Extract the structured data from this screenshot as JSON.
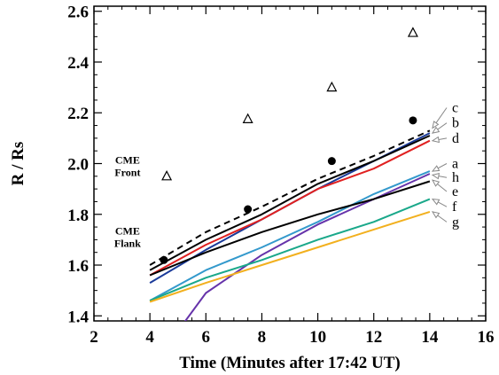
{
  "chart_data": {
    "type": "line",
    "title": "",
    "xlabel": "Time (Minutes after 17:42 UT)",
    "ylabel": "R / Rs",
    "xlim": [
      2,
      16
    ],
    "ylim": [
      1.38,
      2.62
    ],
    "xticks": [
      2,
      4,
      6,
      8,
      10,
      12,
      14,
      16
    ],
    "yticks": [
      1.4,
      1.6,
      1.8,
      2.0,
      2.2,
      2.4,
      2.6
    ],
    "ytick_labels": [
      "1.4",
      "1.6",
      "1.8",
      "2.0",
      "2.2",
      "2.4",
      "2.6"
    ],
    "grid": false,
    "legend": "right-side letters with arrows",
    "annotations": [
      {
        "lines": [
          "CME",
          "Front"
        ],
        "x": 3.2,
        "y": 2.0
      },
      {
        "lines": [
          "CME",
          "Flank"
        ],
        "x": 3.2,
        "y": 1.72
      }
    ],
    "markers": [
      {
        "name": "triangles",
        "shape": "open-triangle",
        "x": [
          4.6,
          7.5,
          10.5,
          13.4
        ],
        "y": [
          1.95,
          2.175,
          2.3,
          2.515
        ]
      },
      {
        "name": "dots",
        "shape": "filled-circle",
        "x": [
          4.5,
          7.5,
          10.5,
          13.4
        ],
        "y": [
          1.62,
          1.82,
          2.01,
          2.17
        ]
      }
    ],
    "series": [
      {
        "name": "c",
        "color": "#000000",
        "dash": "7,5",
        "x": [
          4,
          6,
          8,
          10,
          12,
          14
        ],
        "y": [
          1.6,
          1.73,
          1.83,
          1.94,
          2.03,
          2.13
        ]
      },
      {
        "name": "b",
        "color": "#1a3a99",
        "dash": "",
        "x": [
          4,
          6,
          8,
          10,
          12,
          14
        ],
        "y": [
          1.53,
          1.66,
          1.78,
          1.9,
          2.01,
          2.12
        ]
      },
      {
        "name": "d",
        "color": "#e02020",
        "dash": "",
        "x": [
          4,
          6,
          8,
          10,
          12,
          14
        ],
        "y": [
          1.56,
          1.68,
          1.78,
          1.9,
          1.98,
          2.09
        ]
      },
      {
        "name": "",
        "color": "#000000",
        "dash": "",
        "x": [
          4,
          6,
          8,
          10,
          12,
          14
        ],
        "y": [
          1.58,
          1.7,
          1.8,
          1.92,
          2.01,
          2.11
        ]
      },
      {
        "name": "a",
        "color": "#3399cc",
        "dash": "",
        "x": [
          4,
          6,
          8,
          10,
          12,
          14
        ],
        "y": [
          1.46,
          1.58,
          1.67,
          1.77,
          1.88,
          1.97
        ]
      },
      {
        "name": "h",
        "color": "#6633aa",
        "dash": "",
        "x": [
          5.2,
          6,
          8,
          10,
          12,
          14
        ],
        "y": [
          1.37,
          1.49,
          1.64,
          1.76,
          1.86,
          1.96
        ]
      },
      {
        "name": "e",
        "color": "#000000",
        "dash": "",
        "x": [
          4,
          6,
          8,
          10,
          12,
          14
        ],
        "y": [
          1.56,
          1.65,
          1.73,
          1.8,
          1.86,
          1.93
        ]
      },
      {
        "name": "f",
        "color": "#1aa88a",
        "dash": "",
        "x": [
          4,
          6,
          8,
          10,
          12,
          14
        ],
        "y": [
          1.46,
          1.55,
          1.62,
          1.7,
          1.77,
          1.86
        ]
      },
      {
        "name": "g",
        "color": "#f2b01e",
        "dash": "",
        "x": [
          4,
          6,
          8,
          10,
          12,
          14
        ],
        "y": [
          1.455,
          1.53,
          1.6,
          1.67,
          1.74,
          1.81
        ]
      }
    ],
    "labels": [
      {
        "text": "c",
        "y": 2.22,
        "target_y": 2.14
      },
      {
        "text": "b",
        "y": 2.16,
        "target_y": 2.12
      },
      {
        "text": "d",
        "y": 2.1,
        "target_y": 2.09
      },
      {
        "text": "a",
        "y": 2.0,
        "target_y": 1.97
      },
      {
        "text": "h",
        "y": 1.945,
        "target_y": 1.955
      },
      {
        "text": "e",
        "y": 1.89,
        "target_y": 1.935
      },
      {
        "text": "f",
        "y": 1.83,
        "target_y": 1.86
      },
      {
        "text": "g",
        "y": 1.77,
        "target_y": 1.81
      }
    ]
  }
}
